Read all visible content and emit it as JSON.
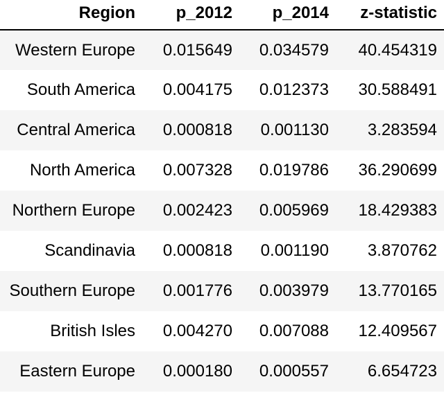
{
  "table": {
    "headers": [
      "Region",
      "p_2012",
      "p_2014",
      "z-statistic"
    ],
    "rows": [
      [
        "Western Europe",
        "0.015649",
        "0.034579",
        "40.454319"
      ],
      [
        "South America",
        "0.004175",
        "0.012373",
        "30.588491"
      ],
      [
        "Central America",
        "0.000818",
        "0.001130",
        "3.283594"
      ],
      [
        "North America",
        "0.007328",
        "0.019786",
        "36.290699"
      ],
      [
        "Northern Europe",
        "0.002423",
        "0.005969",
        "18.429383"
      ],
      [
        "Scandinavia",
        "0.000818",
        "0.001190",
        "3.870762"
      ],
      [
        "Southern Europe",
        "0.001776",
        "0.003979",
        "13.770165"
      ],
      [
        "British Isles",
        "0.004270",
        "0.007088",
        "12.409567"
      ],
      [
        "Eastern Europe",
        "0.000180",
        "0.000557",
        "6.654723"
      ]
    ]
  }
}
